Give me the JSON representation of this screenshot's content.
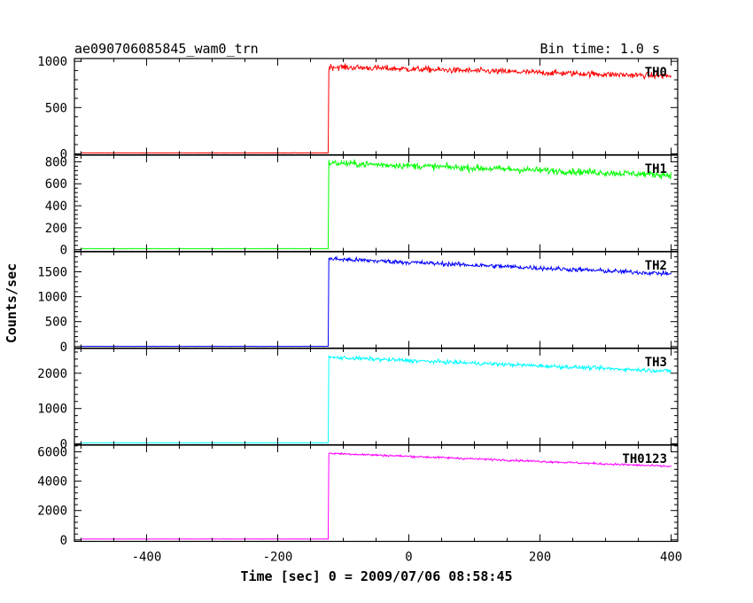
{
  "chart_data": {
    "type": "line",
    "title": "ae090706085845_wam0_trn",
    "subtitle": "Bin time: 1.0 s",
    "xlabel": "Time [sec] 0 = 2009/07/06 08:58:45",
    "ylabel": "Counts/sec",
    "xlim": [
      -510,
      410
    ],
    "xticks": [
      -400,
      -200,
      0,
      200,
      400
    ],
    "x_step": 1.0,
    "trigger_time": -122,
    "x_start": -500,
    "x_end": 400,
    "grid": false,
    "panels": [
      {
        "name": "TH0",
        "color": "#ff0000",
        "ylim": [
          -10,
          1030
        ],
        "yticks": [
          0,
          500,
          1000
        ],
        "pre_level": 10,
        "post_start": 940,
        "post_end": 840,
        "noise": 32
      },
      {
        "name": "TH1",
        "color": "#00ff00",
        "ylim": [
          -15,
          860
        ],
        "yticks": [
          0,
          200,
          400,
          600,
          800
        ],
        "pre_level": 10,
        "post_start": 790,
        "post_end": 680,
        "noise": 30
      },
      {
        "name": "TH2",
        "color": "#0000ff",
        "ylim": [
          -30,
          1900
        ],
        "yticks": [
          0,
          500,
          1000,
          1500
        ],
        "pre_level": 5,
        "post_start": 1760,
        "post_end": 1460,
        "noise": 45
      },
      {
        "name": "TH3",
        "color": "#00ffff",
        "ylim": [
          -25,
          2700
        ],
        "yticks": [
          0,
          1000,
          2000
        ],
        "pre_level": 30,
        "post_start": 2450,
        "post_end": 2060,
        "noise": 55
      },
      {
        "name": "TH0123",
        "color": "#ff00ff",
        "ylim": [
          -100,
          6450
        ],
        "yticks": [
          0,
          2000,
          4000,
          6000
        ],
        "pre_level": 60,
        "post_start": 5900,
        "post_end": 5000,
        "noise": 70
      }
    ]
  }
}
